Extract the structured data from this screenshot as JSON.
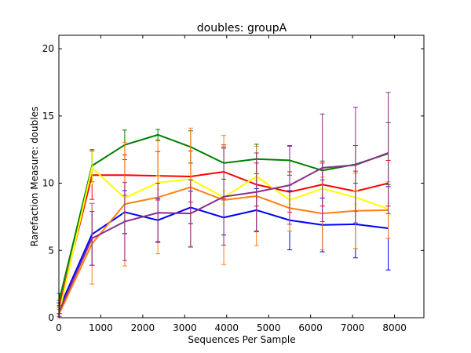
{
  "chart_data": {
    "type": "line",
    "title": "doubles: groupA",
    "xlabel": "Sequences Per Sample",
    "ylabel": "Rarefaction Measure: doubles",
    "xlim": [
      0,
      8700
    ],
    "ylim": [
      0,
      21
    ],
    "x_ticks": [
      0,
      1000,
      2000,
      3000,
      4000,
      5000,
      6000,
      7000,
      8000
    ],
    "y_ticks": [
      0,
      5,
      10,
      15,
      20
    ],
    "grid": false,
    "legend": "none",
    "x": [
      10,
      790,
      1570,
      2360,
      3140,
      3930,
      4710,
      5500,
      6280,
      7070,
      7850
    ],
    "series": [
      {
        "color": "#ff0000",
        "values": [
          0.8,
          10.6,
          10.6,
          10.55,
          10.5,
          10.85,
          9.9,
          9.35,
          9.9,
          9.4,
          10.0
        ],
        "errors": [
          0.5,
          1.8,
          1.5,
          1.8,
          1.9,
          2.0,
          1.6,
          1.5,
          1.6,
          1.5,
          1.7
        ]
      },
      {
        "color": "#008000",
        "values": [
          1.3,
          11.3,
          12.85,
          13.6,
          12.7,
          11.5,
          11.8,
          11.7,
          10.95,
          11.4,
          12.2
        ],
        "errors": [
          0.5,
          1.2,
          1.1,
          0.4,
          1.2,
          1.2,
          1.1,
          1.1,
          0.7,
          1.4,
          2.3
        ]
      },
      {
        "color": "#0000ff",
        "values": [
          0.7,
          6.2,
          7.85,
          7.25,
          8.2,
          7.45,
          8.0,
          7.25,
          6.9,
          6.95,
          6.65
        ],
        "errors": [
          0.4,
          2.3,
          1.6,
          1.6,
          1.2,
          1.3,
          1.6,
          2.2,
          2.0,
          2.5,
          3.1
        ]
      },
      {
        "color": "#ffff00",
        "values": [
          0.4,
          11.15,
          8.9,
          10.05,
          10.3,
          8.95,
          10.5,
          8.75,
          9.6,
          8.95,
          8.1
        ],
        "errors": [
          0.3,
          1.2,
          1.2,
          0.5,
          0.4,
          0.5,
          0.3,
          0.3,
          0.5,
          0.5,
          0.4
        ]
      },
      {
        "color": "#ff7f0e",
        "values": [
          0.3,
          5.5,
          8.45,
          8.95,
          9.7,
          8.75,
          9.05,
          8.15,
          7.75,
          7.95,
          8.0
        ],
        "errors": [
          0.3,
          3.0,
          4.6,
          4.2,
          4.4,
          4.8,
          3.7,
          1.7,
          2.7,
          2.8,
          2.1
        ]
      },
      {
        "color": "#8b2f8b",
        "values": [
          0.5,
          5.9,
          7.15,
          7.8,
          7.75,
          9.0,
          9.35,
          9.85,
          11.15,
          11.35,
          12.25
        ],
        "errors": [
          0.4,
          2.0,
          2.9,
          2.2,
          2.5,
          3.6,
          2.9,
          2.9,
          4.0,
          4.3,
          4.5
        ]
      }
    ]
  }
}
